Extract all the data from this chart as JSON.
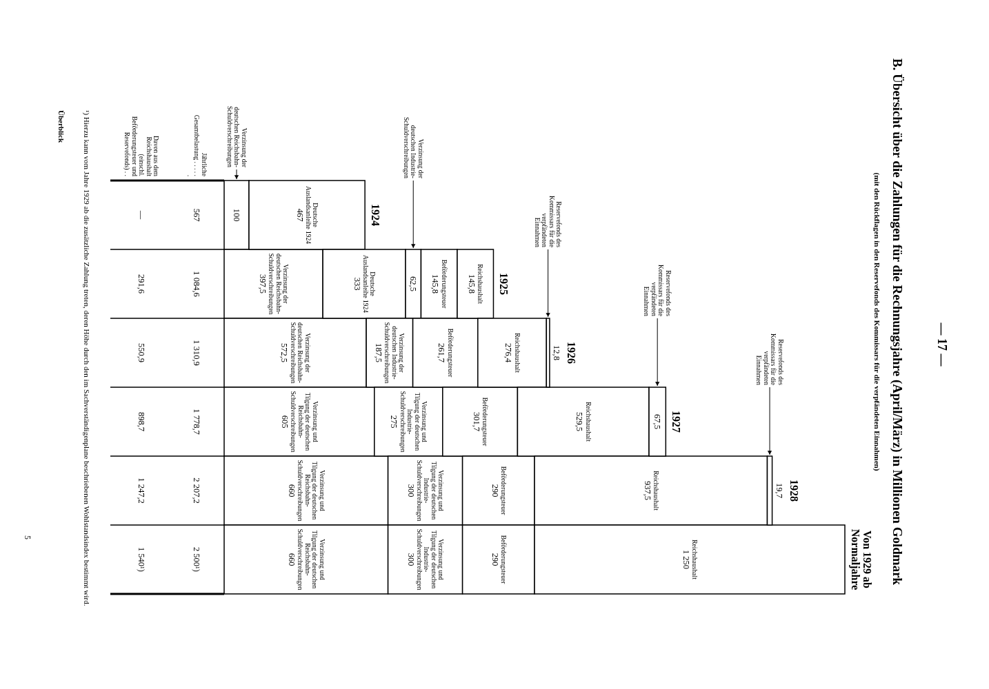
{
  "chart_data": {
    "type": "bar",
    "orientation": "horizontal",
    "stacked": true,
    "title": "B. Übersicht über die Zahlungen für die Rechnungsjahre (April/März) in Millionen Goldmark",
    "subtitle": "(mit den Rückflagen in den Reservefonds des Kommissars für die verpfändeten Einnahmen)",
    "categories": [
      "1924",
      "1925",
      "1926",
      "1927",
      "1928",
      "Von 1929 ab Normaljahre"
    ],
    "series": [
      {
        "name": "Verzinsung der deutschen Reichsbahn-Schuldverschreibungen",
        "color": "#ffffff",
        "values": [
          100,
          397.5,
          572.5,
          null,
          null,
          null
        ],
        "value_labels": [
          "100",
          "397,5",
          "572,5",
          null,
          null,
          null
        ]
      },
      {
        "name": "Verzinsung und Tilgung der deutschen Reichsbahn-Schuldverschreibungen",
        "color": "#ffffff",
        "values": [
          null,
          null,
          null,
          605,
          660,
          660
        ],
        "value_labels": [
          null,
          null,
          null,
          "605",
          "660",
          "660"
        ]
      },
      {
        "name": "Deutsche Auslandsanleihe 1924",
        "color": "#ffffff",
        "values": [
          467,
          333,
          null,
          null,
          null,
          null
        ],
        "value_labels": [
          "467",
          "333",
          null,
          null,
          null,
          null
        ]
      },
      {
        "name": "Verzinsung der deutschen Industrie-Schuldverschreibungen",
        "color": "#ffffff",
        "values": [
          null,
          62.5,
          187.5,
          null,
          null,
          null
        ],
        "value_labels": [
          null,
          "62,5",
          "187,5",
          null,
          null,
          null
        ]
      },
      {
        "name": "Verzinsung und Tilgung der deutschen Industrie-Schuldverschreibungen",
        "color": "#ffffff",
        "values": [
          null,
          null,
          null,
          275,
          300,
          300
        ],
        "value_labels": [
          null,
          null,
          null,
          "275",
          "300",
          "300"
        ]
      },
      {
        "name": "Beförderungsteuer",
        "color": "#ffffff",
        "values": [
          null,
          145.8,
          261.7,
          301.7,
          290,
          290
        ],
        "value_labels": [
          null,
          "145,8",
          "261,7",
          "301,7",
          "290",
          "290"
        ]
      },
      {
        "name": "Reichshaushalt",
        "color": "#ffffff",
        "values": [
          null,
          145.8,
          276.4,
          529.5,
          937.5,
          1250
        ],
        "value_labels": [
          null,
          "145,8",
          "276,4",
          "529,5",
          "937,5",
          "1 250"
        ]
      },
      {
        "name": "Reservefonds des Kommissars für die verpfändeten Einnahmen",
        "color": "#ffffff",
        "values": [
          null,
          null,
          12.8,
          67.5,
          19.7,
          null
        ],
        "value_labels": [
          null,
          null,
          "12,8",
          "67,5",
          "19,7",
          null
        ]
      }
    ],
    "totals": [
      "567",
      "1 084,6",
      "1 310,9",
      "1 778,7",
      "2 207,2",
      "2 500¹)"
    ],
    "annotations": [
      "— 17 —",
      "Jährliche Gesamtbelastung . . . . . .",
      "Davon aus dem Reichshaushalt (einschl. Beförderungsteuer und Reservefonds) . .",
      "—",
      "291,6",
      "550,9",
      "898,7",
      "1 247,2",
      "1 540¹)",
      "¹) Hierzu kann vom Jahre 1929 ab die zusätzliche Zahlung treten, deren Höhe durch den im Sachverständigenplane beschriebenen Wohlstandsindex bestimmt wird.",
      "Überblick",
      "5"
    ]
  }
}
